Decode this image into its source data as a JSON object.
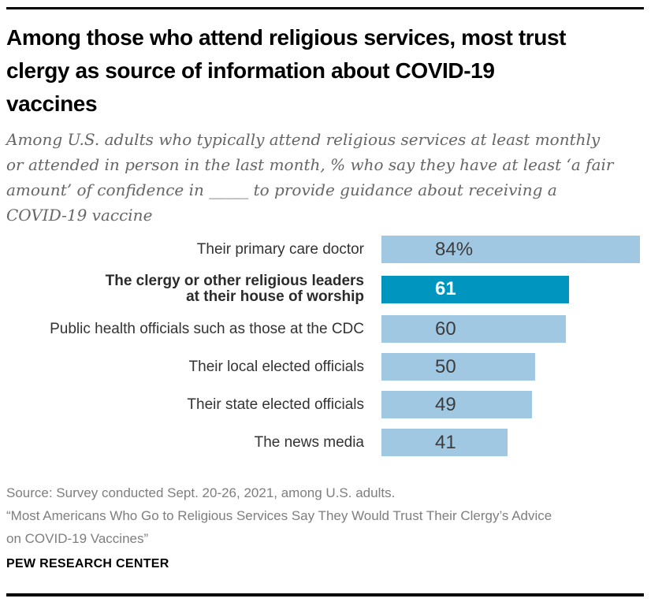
{
  "header": {
    "title": "Among those who attend religious services, most trust\nclergy as source of information about COVID-19\nvaccines",
    "subtitle": "Among U.S. adults who typically attend religious services at least monthly\nor attended in person in the last month, % who say they have at least ‘a fair\namount’ of confidence in _____ to provide guidance about receiving a\nCOVID-19 vaccine"
  },
  "chart_data": {
    "type": "bar",
    "orientation": "horizontal",
    "categories": [
      "Their primary care doctor",
      "The clergy or other religious leaders\nat their house of worship",
      "Public health officials such as those at the CDC",
      "Their local elected officials",
      "Their state elected officials",
      "The news media"
    ],
    "values": [
      84,
      61,
      60,
      50,
      49,
      41
    ],
    "value_labels": [
      "84%",
      "61",
      "60",
      "50",
      "49",
      "41"
    ],
    "highlight_index": 1,
    "xlim": [
      0,
      84
    ],
    "grid": false,
    "legend": "none",
    "colors": {
      "bar": "#a0c8e2",
      "highlight_bar": "#0095be",
      "value_text": "#3d3d3d",
      "highlight_value_text": "#ffffff"
    }
  },
  "notes": [
    "Source: Survey conducted Sept. 20-26, 2021, among U.S. adults.",
    "“Most Americans Who Go to Religious Services Say They Would Trust Their Clergy’s Advice\non COVID-19 Vaccines”"
  ],
  "footer": {
    "brand": "PEW RESEARCH CENTER"
  }
}
